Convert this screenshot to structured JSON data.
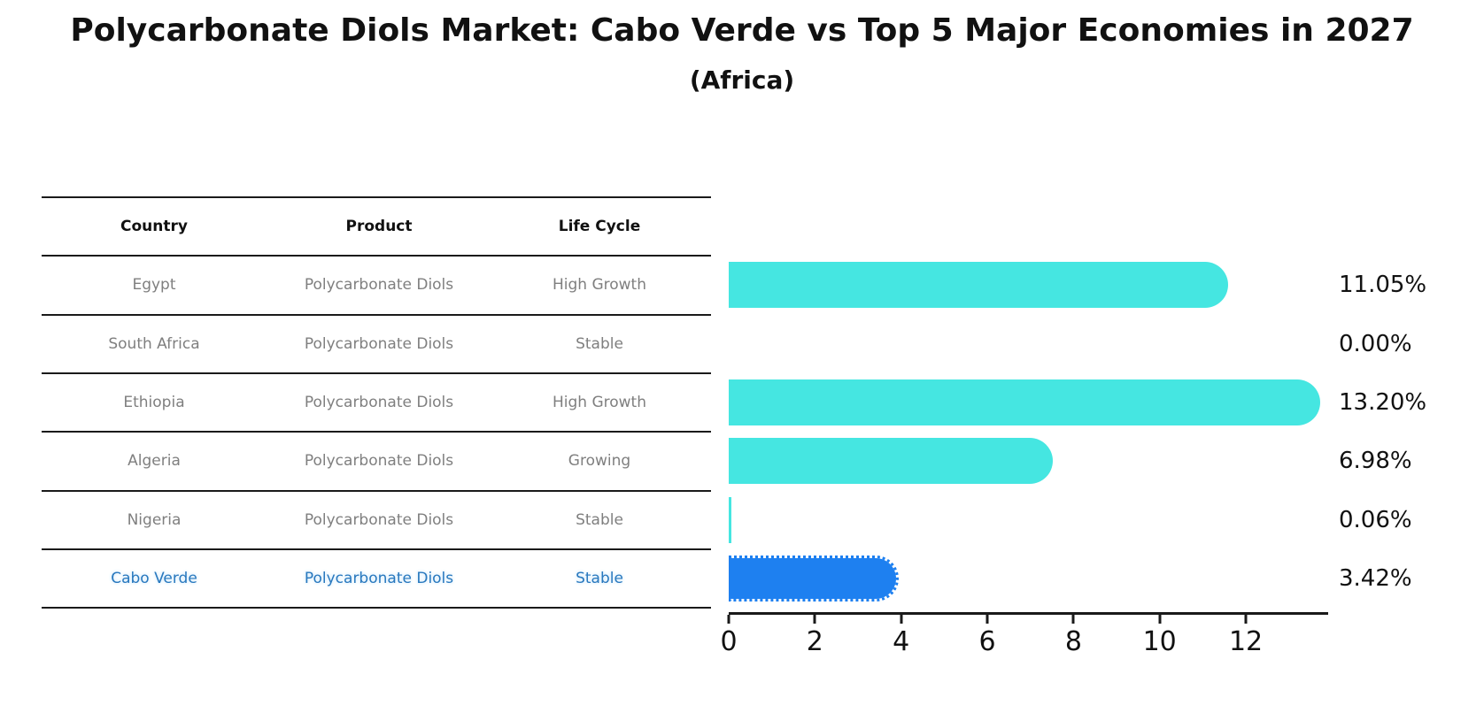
{
  "header": {
    "title": "Polycarbonate Diols Market: Cabo Verde vs Top 5 Major Economies in 2027",
    "subtitle": "(Africa)"
  },
  "colors": {
    "bar": "#45E6E1",
    "highlight_bar": "#1E80F0",
    "table_text": "#7f7f7f",
    "highlight_text": "#2878BE",
    "header_text": "#111111",
    "value_text": "#111111"
  },
  "table": {
    "columns": [
      "Country",
      "Product",
      "Life Cycle"
    ],
    "rows": [
      {
        "country": "Egypt",
        "product": "Polycarbonate Diols",
        "life_cycle": "High Growth",
        "highlight": false
      },
      {
        "country": "South Africa",
        "product": "Polycarbonate Diols",
        "life_cycle": "Stable",
        "highlight": false
      },
      {
        "country": "Ethiopia",
        "product": "Polycarbonate Diols",
        "life_cycle": "High Growth",
        "highlight": false
      },
      {
        "country": "Algeria",
        "product": "Polycarbonate Diols",
        "life_cycle": "Growing",
        "highlight": false
      },
      {
        "country": "Nigeria",
        "product": "Polycarbonate Diols",
        "life_cycle": "Stable",
        "highlight": false
      },
      {
        "country": "Cabo Verde",
        "product": "Polycarbonate Diols",
        "life_cycle": "Stable",
        "highlight": true
      }
    ]
  },
  "chart_data": {
    "type": "bar",
    "orientation": "horizontal",
    "title": "Polycarbonate Diols Market: Cabo Verde vs Top 5 Major Economies in 2027",
    "subtitle": "(Africa)",
    "categories": [
      "Egypt",
      "South Africa",
      "Ethiopia",
      "Algeria",
      "Nigeria",
      "Cabo Verde"
    ],
    "values": [
      11.05,
      0.0,
      13.2,
      6.98,
      0.06,
      3.42
    ],
    "value_labels": [
      "11.05%",
      "0.00%",
      "13.20%",
      "6.98%",
      "0.06%",
      "3.42%"
    ],
    "highlight_category": "Cabo Verde",
    "xlim": [
      0,
      13.9
    ],
    "xticks": [
      0,
      2,
      4,
      6,
      8,
      10,
      12
    ],
    "grid": false,
    "legend": false
  }
}
